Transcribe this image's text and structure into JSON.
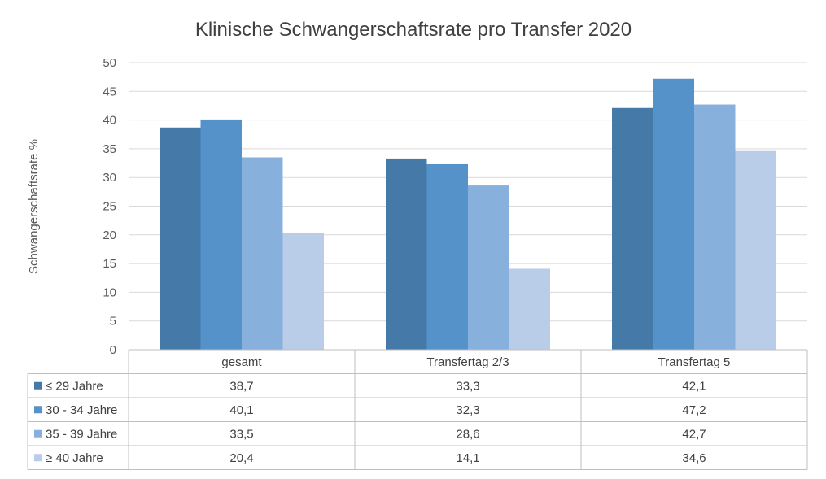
{
  "chart_data": {
    "type": "bar",
    "title": "Klinische Schwangerschaftsrate pro Transfer 2020",
    "ylabel": "Schwangerschaftsrate %",
    "xlabel": "",
    "ylim": [
      0,
      50
    ],
    "yticks": [
      "0",
      "5",
      "10",
      "15",
      "20",
      "25",
      "30",
      "35",
      "40",
      "45",
      "50"
    ],
    "grid": true,
    "legend": "data-table-left",
    "categories": [
      "gesamt",
      "Transfertag 2/3",
      "Transfertag 5"
    ],
    "series": [
      {
        "name": "≤ 29 Jahre",
        "color": "#4579A8",
        "values": [
          38.7,
          33.3,
          42.1
        ],
        "labels": [
          "38,7",
          "33,3",
          "42,1"
        ]
      },
      {
        "name": "30 - 34 Jahre",
        "color": "#5592CA",
        "values": [
          40.1,
          32.3,
          47.2
        ],
        "labels": [
          "40,1",
          "32,3",
          "47,2"
        ]
      },
      {
        "name": "35 - 39 Jahre",
        "color": "#88B0DC",
        "values": [
          33.5,
          28.6,
          42.7
        ],
        "labels": [
          "33,5",
          "28,6",
          "42,7"
        ]
      },
      {
        "name": "≥ 40 Jahre",
        "color": "#BACDE8",
        "values": [
          20.4,
          14.1,
          34.6
        ],
        "labels": [
          "20,4",
          "14,1",
          "34,6"
        ]
      }
    ]
  }
}
